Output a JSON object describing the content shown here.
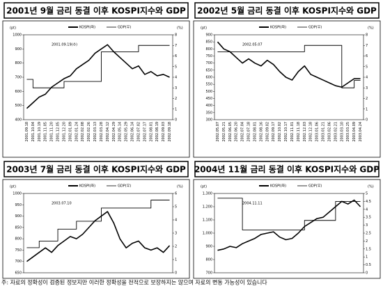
{
  "chart_data": [
    {
      "type": "line",
      "title": "2001년 9월 금리 동결 이후 KOSPI지수와 GDP",
      "annotation": "2001.09.19(수)",
      "y_unit": "(pt)",
      "y2_unit": "(%)",
      "categories": [
        "2001.09.18",
        "2001.10.04",
        "2001.10.19",
        "2001.11.05",
        "2001.11.20",
        "2001.12.05",
        "2001.12.20",
        "2002.01.09",
        "2002.01.24",
        "2002.02.08",
        "2002.02.26",
        "2002.03.13",
        "2002.03.28",
        "2002.04.12",
        "2002.04.29",
        "2002.05.14",
        "2002.05.29",
        "2002.06.14",
        "2002.07.02",
        "2002.07.17",
        "2002.08.01",
        "2002.08.19",
        "2002.09.03",
        "2002.09.18"
      ],
      "series": [
        {
          "name": "KOSPI(좌)",
          "color": "#000000",
          "values": [
            480,
            520,
            560,
            580,
            630,
            660,
            690,
            710,
            760,
            790,
            820,
            870,
            900,
            930,
            880,
            840,
            800,
            760,
            780,
            720,
            740,
            710,
            720,
            700
          ]
        },
        {
          "name": "GDP(우)",
          "color": "#000000",
          "axis": "y2",
          "step": true,
          "values": [
            3.8,
            3,
            3,
            3,
            3,
            3,
            3.6,
            3.6,
            3.6,
            3.6,
            3.6,
            3.6,
            6.4,
            6.4,
            6.4,
            6.4,
            6.4,
            6.4,
            7,
            7,
            7,
            7,
            7,
            7
          ]
        }
      ],
      "ylim": [
        400,
        1000
      ],
      "yticks": [
        400,
        500,
        600,
        700,
        800,
        900,
        1000
      ],
      "y2lim": [
        0,
        8
      ],
      "y2ticks": [
        0,
        1,
        2,
        3,
        4,
        5,
        6,
        7,
        8
      ]
    },
    {
      "type": "line",
      "title": "2002년 5월 금리 동결 이후 KOSPI지수와 GDP",
      "annotation": "2002.05.07",
      "y_unit": "(pt)",
      "y2_unit": "(%)",
      "categories": [
        "2002.05.07",
        "2002.05.21",
        "2002.06.05",
        "2002.06.20",
        "2002.07.04",
        "2002.07.18",
        "2002.08.01",
        "2002.08.16",
        "2002.09.02",
        "2002.09.17",
        "2002.10.02",
        "2002.10.17",
        "2002.11.01",
        "2002.11.18",
        "2002.12.03",
        "2002.12.18",
        "2003.01.06",
        "2003.01.21",
        "2003.02.06",
        "2003.02.21",
        "2003.03.10",
        "2003.03.25",
        "2003.04.09",
        "2003.04.24"
      ],
      "series": [
        {
          "name": "KOSPI(좌)",
          "color": "#000000",
          "values": [
            850,
            800,
            780,
            740,
            700,
            730,
            700,
            680,
            720,
            690,
            640,
            600,
            580,
            640,
            680,
            620,
            600,
            580,
            560,
            540,
            530,
            560,
            590,
            590
          ]
        },
        {
          "name": "GDP(우)",
          "color": "#000000",
          "axis": "y2",
          "step": true,
          "values": [
            6.4,
            6.4,
            6.4,
            6.4,
            6.4,
            6.4,
            6.4,
            6.4,
            6.4,
            6.4,
            6.4,
            6.4,
            6.4,
            6.4,
            7,
            7,
            7,
            7,
            7,
            7,
            3,
            3,
            3.7,
            3.7
          ]
        }
      ],
      "ylim": [
        300,
        900
      ],
      "yticks": [
        300,
        350,
        400,
        450,
        500,
        550,
        600,
        650,
        700,
        750,
        800,
        850,
        900
      ],
      "y2lim": [
        0,
        8
      ],
      "y2ticks": [
        0,
        1,
        2,
        3,
        4,
        5,
        6,
        7,
        8
      ]
    },
    {
      "type": "line",
      "title": "2003년 7월 금리 동결 이후 KOSPI지수와 GDP",
      "annotation": "2003.07.10",
      "y_unit": "(pt)",
      "y2_unit": "(%)",
      "series": [
        {
          "name": "KOSPI(좌)",
          "color": "#000000",
          "values": [
            700,
            720,
            740,
            760,
            740,
            770,
            790,
            810,
            800,
            820,
            850,
            880,
            900,
            920,
            870,
            800,
            760,
            780,
            790,
            760,
            750,
            760,
            740,
            770
          ]
        },
        {
          "name": "GDP(우)",
          "color": "#000000",
          "axis": "y2",
          "step": true,
          "values": [
            1.9,
            1.9,
            2.4,
            2.4,
            2.4,
            3.3,
            3.3,
            3.3,
            3.9,
            3.9,
            3.9,
            3.9,
            4.9,
            4.9,
            4.9,
            4.9,
            4.9,
            4.9,
            4.9,
            4.9,
            5.5,
            5.5,
            5.5,
            5.5
          ]
        }
      ],
      "ylim": [
        650,
        1000
      ],
      "yticks": [
        650,
        700,
        750,
        800,
        850,
        900,
        950,
        1000
      ],
      "y2lim": [
        0,
        6
      ],
      "y2ticks": [
        0,
        1,
        2,
        3,
        4,
        5,
        6
      ]
    },
    {
      "type": "line",
      "title": "2004년 11월 금리 동결 이후 KOSPI지수와 GDP",
      "annotation": "2004.11.11",
      "y_unit": "(pt)",
      "y2_unit": "(%)",
      "series": [
        {
          "name": "KOSPI(좌)",
          "color": "#000000",
          "values": [
            870,
            880,
            900,
            890,
            920,
            940,
            960,
            990,
            1000,
            1010,
            970,
            950,
            960,
            1000,
            1050,
            1080,
            1110,
            1120,
            1160,
            1200,
            1240,
            1220,
            1250,
            1200
          ]
        },
        {
          "name": "GDP(우)",
          "color": "#000000",
          "axis": "y2",
          "step": true,
          "values": [
            4.7,
            4.7,
            4.7,
            4.7,
            2.7,
            2.7,
            2.7,
            2.7,
            2.7,
            2.7,
            2.7,
            2.7,
            2.7,
            2.7,
            3.3,
            3.3,
            3.3,
            3.3,
            3.3,
            4.5,
            4.5,
            4.5,
            4.5,
            4.5
          ]
        }
      ],
      "ylim": [
        700,
        1300
      ],
      "yticks": [
        {
          "value": 700,
          "label": "700"
        },
        {
          "value": 800,
          "label": "800"
        },
        {
          "value": 900,
          "label": "900"
        },
        {
          "value": 1000,
          "label": "1,000"
        },
        {
          "value": 1100,
          "label": "1,100"
        },
        {
          "value": 1200,
          "label": "1,200"
        },
        {
          "value": 1300,
          "label": "1,300"
        }
      ],
      "y2lim": [
        0,
        5
      ],
      "y2ticks": [
        0,
        0.5,
        1,
        1.5,
        2,
        2.5,
        3,
        3.5,
        4,
        4.5,
        5
      ]
    }
  ],
  "footer": "주: 자료의 정확성이 검증된 정보지만 이러한 정확성을 전적으로 보장하지는 않으며 자료의 변동 가능성이 있습니다"
}
